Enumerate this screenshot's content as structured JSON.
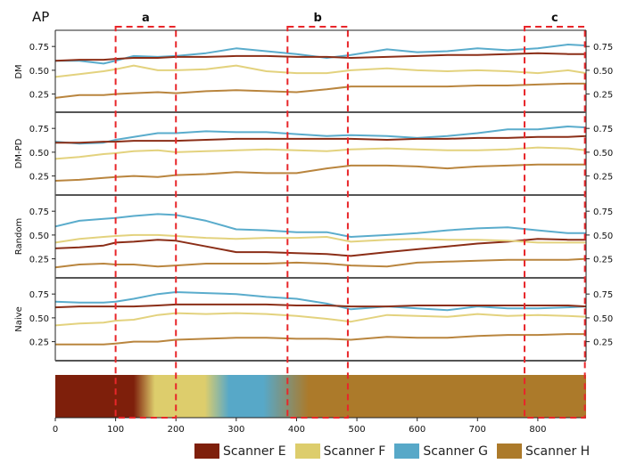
{
  "chart_data": {
    "type": "line",
    "title": "AP",
    "x_axis": {
      "range": [
        0,
        880
      ],
      "ticks": [
        0,
        100,
        200,
        300,
        400,
        500,
        600,
        700,
        800
      ]
    },
    "y_axis": {
      "range": [
        0.05,
        0.92
      ],
      "ticks": [
        0.25,
        0.5,
        0.75
      ],
      "tick_labels": [
        "0.25",
        "0.50",
        "0.75"
      ]
    },
    "regions": [
      {
        "label": "a",
        "x_start": 100,
        "x_end": 200,
        "color": "#e8262a"
      },
      {
        "label": "b",
        "x_start": 385,
        "x_end": 485,
        "color": "#e8262a"
      },
      {
        "label": "c",
        "x_start": 778,
        "x_end": 878,
        "color": "#e8262a"
      }
    ],
    "x": [
      0,
      40,
      80,
      100,
      130,
      170,
      200,
      250,
      300,
      350,
      400,
      450,
      490,
      550,
      600,
      650,
      700,
      750,
      800,
      850,
      880
    ],
    "panels": [
      {
        "name": "DM",
        "series": [
          {
            "name": "Scanner G",
            "color": "#5aaccc",
            "values": [
              0.6,
              0.6,
              0.57,
              0.6,
              0.65,
              0.64,
              0.65,
              0.68,
              0.73,
              0.7,
              0.67,
              0.63,
              0.66,
              0.72,
              0.69,
              0.7,
              0.73,
              0.71,
              0.73,
              0.77,
              0.76
            ]
          },
          {
            "name": "Scanner E",
            "color": "#8b2e17",
            "values": [
              0.6,
              0.61,
              0.61,
              0.62,
              0.63,
              0.63,
              0.64,
              0.64,
              0.65,
              0.65,
              0.64,
              0.64,
              0.63,
              0.64,
              0.65,
              0.66,
              0.66,
              0.67,
              0.68,
              0.67,
              0.67
            ]
          },
          {
            "name": "Scanner F",
            "color": "#e3d27e",
            "values": [
              0.43,
              0.46,
              0.49,
              0.51,
              0.55,
              0.5,
              0.5,
              0.51,
              0.55,
              0.49,
              0.47,
              0.47,
              0.5,
              0.52,
              0.5,
              0.49,
              0.5,
              0.49,
              0.47,
              0.5,
              0.47
            ]
          },
          {
            "name": "Scanner H",
            "color": "#b9853e",
            "values": [
              0.21,
              0.24,
              0.24,
              0.25,
              0.26,
              0.27,
              0.26,
              0.28,
              0.29,
              0.28,
              0.27,
              0.3,
              0.33,
              0.33,
              0.33,
              0.33,
              0.34,
              0.34,
              0.35,
              0.36,
              0.36
            ]
          }
        ]
      },
      {
        "name": "DM-PD",
        "series": [
          {
            "name": "Scanner G",
            "color": "#5aaccc",
            "values": [
              0.61,
              0.59,
              0.6,
              0.63,
              0.66,
              0.7,
              0.7,
              0.72,
              0.71,
              0.71,
              0.69,
              0.67,
              0.68,
              0.67,
              0.65,
              0.67,
              0.7,
              0.74,
              0.74,
              0.77,
              0.76
            ]
          },
          {
            "name": "Scanner E",
            "color": "#8b2e17",
            "values": [
              0.6,
              0.6,
              0.61,
              0.61,
              0.62,
              0.62,
              0.62,
              0.63,
              0.64,
              0.64,
              0.64,
              0.64,
              0.64,
              0.63,
              0.64,
              0.64,
              0.65,
              0.65,
              0.66,
              0.66,
              0.67
            ]
          },
          {
            "name": "Scanner F",
            "color": "#e3d27e",
            "values": [
              0.43,
              0.45,
              0.48,
              0.49,
              0.51,
              0.52,
              0.5,
              0.51,
              0.52,
              0.53,
              0.52,
              0.51,
              0.53,
              0.54,
              0.53,
              0.52,
              0.52,
              0.53,
              0.55,
              0.54,
              0.52
            ]
          },
          {
            "name": "Scanner H",
            "color": "#b9853e",
            "values": [
              0.2,
              0.21,
              0.23,
              0.24,
              0.25,
              0.24,
              0.26,
              0.27,
              0.29,
              0.28,
              0.28,
              0.33,
              0.36,
              0.36,
              0.35,
              0.33,
              0.35,
              0.36,
              0.37,
              0.37,
              0.37
            ]
          }
        ]
      },
      {
        "name": "Random",
        "series": [
          {
            "name": "Scanner G",
            "color": "#5aaccc",
            "values": [
              0.59,
              0.65,
              0.67,
              0.68,
              0.7,
              0.72,
              0.71,
              0.65,
              0.56,
              0.55,
              0.53,
              0.53,
              0.48,
              0.5,
              0.52,
              0.55,
              0.57,
              0.58,
              0.55,
              0.52,
              0.52
            ]
          },
          {
            "name": "Scanner E",
            "color": "#8b2e17",
            "values": [
              0.36,
              0.37,
              0.39,
              0.42,
              0.43,
              0.45,
              0.44,
              0.38,
              0.32,
              0.32,
              0.31,
              0.3,
              0.28,
              0.32,
              0.35,
              0.38,
              0.41,
              0.43,
              0.46,
              0.45,
              0.45
            ]
          },
          {
            "name": "Scanner F",
            "color": "#e3d27e",
            "values": [
              0.42,
              0.46,
              0.48,
              0.49,
              0.5,
              0.5,
              0.49,
              0.47,
              0.46,
              0.47,
              0.47,
              0.48,
              0.43,
              0.45,
              0.46,
              0.45,
              0.45,
              0.44,
              0.42,
              0.42,
              0.42
            ]
          },
          {
            "name": "Scanner H",
            "color": "#b9853e",
            "values": [
              0.16,
              0.19,
              0.2,
              0.19,
              0.19,
              0.17,
              0.18,
              0.2,
              0.2,
              0.2,
              0.21,
              0.2,
              0.18,
              0.17,
              0.21,
              0.22,
              0.23,
              0.24,
              0.24,
              0.24,
              0.25
            ]
          }
        ]
      },
      {
        "name": "Naive",
        "series": [
          {
            "name": "Scanner G",
            "color": "#5aaccc",
            "values": [
              0.67,
              0.66,
              0.66,
              0.67,
              0.7,
              0.75,
              0.77,
              0.76,
              0.75,
              0.72,
              0.7,
              0.65,
              0.59,
              0.62,
              0.6,
              0.58,
              0.62,
              0.6,
              0.6,
              0.61,
              0.62
            ]
          },
          {
            "name": "Scanner E",
            "color": "#8b2e17",
            "values": [
              0.61,
              0.62,
              0.62,
              0.62,
              0.62,
              0.63,
              0.64,
              0.64,
              0.64,
              0.64,
              0.63,
              0.63,
              0.62,
              0.62,
              0.63,
              0.63,
              0.63,
              0.63,
              0.63,
              0.63,
              0.62
            ]
          },
          {
            "name": "Scanner F",
            "color": "#e3d27e",
            "values": [
              0.42,
              0.44,
              0.45,
              0.47,
              0.48,
              0.53,
              0.55,
              0.54,
              0.55,
              0.54,
              0.52,
              0.49,
              0.46,
              0.53,
              0.52,
              0.51,
              0.54,
              0.52,
              0.53,
              0.52,
              0.51
            ]
          },
          {
            "name": "Scanner H",
            "color": "#b9853e",
            "values": [
              0.22,
              0.22,
              0.22,
              0.23,
              0.25,
              0.25,
              0.27,
              0.28,
              0.29,
              0.29,
              0.28,
              0.28,
              0.27,
              0.3,
              0.29,
              0.29,
              0.31,
              0.32,
              0.32,
              0.33,
              0.33
            ]
          }
        ]
      }
    ],
    "scanner_strip": {
      "segments": [
        {
          "scanner": "Scanner E",
          "x_start": 0,
          "x_end": 130,
          "color": "#7e1f0b"
        },
        {
          "scanner": "Scanner F",
          "x_start": 165,
          "x_end": 248,
          "color": "#ddcd6c"
        },
        {
          "scanner": "Scanner G",
          "x_start": 288,
          "x_end": 345,
          "color": "#57a8c8"
        },
        {
          "scanner": "Scanner H",
          "x_start": 420,
          "x_end": 880,
          "color": "#ac7a2a"
        }
      ]
    },
    "legend": {
      "placement": "bottom-right",
      "entries": [
        {
          "name": "Scanner E",
          "color": "#7e1f0b"
        },
        {
          "name": "Scanner F",
          "color": "#ddcd6c"
        },
        {
          "name": "Scanner G",
          "color": "#57a8c8"
        },
        {
          "name": "Scanner H",
          "color": "#ac7a2a"
        }
      ]
    }
  }
}
